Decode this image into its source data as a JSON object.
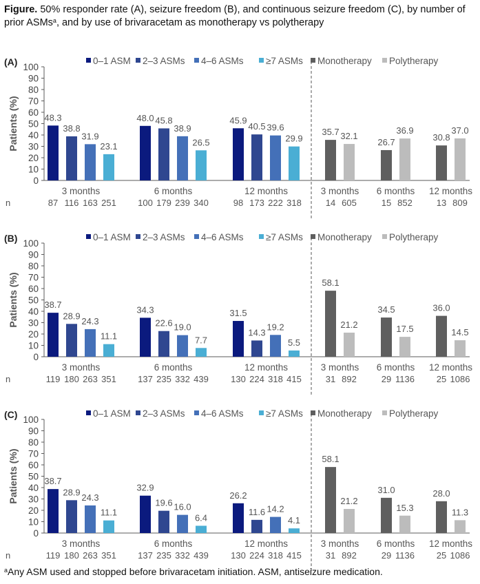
{
  "caption": {
    "bold": "Figure.",
    "text_before_sup": " 50% responder rate (A), seizure freedom (B), and continuous seizure freedom (C), by number of prior ASMs",
    "sup": "a",
    "text_after_sup": ", and by use of brivaracetam as monotherapy vs polytherapy"
  },
  "footnote": {
    "sup": "a",
    "text": "Any ASM used and stopped before brivaracetam initiation. ASM, antiseizure medication."
  },
  "colors": {
    "asm_0_1": "#0b1a7e",
    "asm_2_3": "#2f4790",
    "asm_4_6": "#4470b8",
    "asm_7plus": "#4aaed4",
    "monotherapy": "#5f5f5f",
    "polytherapy": "#bcbcbc"
  },
  "chart_data": [
    {
      "panel": "(A)",
      "type": "bar",
      "title": "50% responder rate",
      "ylabel": "Patients (%)",
      "ylim": [
        0,
        100
      ],
      "yticks": [
        0,
        10,
        20,
        30,
        40,
        50,
        60,
        70,
        80,
        90,
        100
      ],
      "legend": [
        "0–1 ASM",
        "2–3 ASMs",
        "4–6 ASMs",
        "≥7 ASMs",
        "Monotherapy",
        "Polytherapy"
      ],
      "legend_position": "top",
      "n_label": "n",
      "groups": [
        {
          "category": "3 months",
          "section": "prior_asms",
          "series": [
            "0–1 ASM",
            "2–3 ASMs",
            "4–6 ASMs",
            "≥7 ASMs"
          ],
          "values": [
            48.3,
            38.8,
            31.9,
            23.1
          ],
          "labels": [
            "48.3",
            "38.8",
            "31.9",
            "23.1"
          ],
          "n": [
            "87",
            "116",
            "163",
            "251"
          ]
        },
        {
          "category": "6 months",
          "section": "prior_asms",
          "series": [
            "0–1 ASM",
            "2–3 ASMs",
            "4–6 ASMs",
            "≥7 ASMs"
          ],
          "values": [
            48.0,
            45.8,
            38.9,
            26.5
          ],
          "labels": [
            "48.0",
            "45.8",
            "38.9",
            "26.5"
          ],
          "n": [
            "100",
            "179",
            "239",
            "340"
          ]
        },
        {
          "category": "12 months",
          "section": "prior_asms",
          "series": [
            "0–1 ASM",
            "2–3 ASMs",
            "4–6 ASMs",
            "≥7 ASMs"
          ],
          "values": [
            45.9,
            40.5,
            39.6,
            29.9
          ],
          "labels": [
            "45.9",
            "40.5",
            "39.6",
            "29.9"
          ],
          "n": [
            "98",
            "173",
            "222",
            "318"
          ]
        },
        {
          "category": "3 months",
          "section": "therapy",
          "series": [
            "Monotherapy",
            "Polytherapy"
          ],
          "values": [
            35.7,
            32.1
          ],
          "labels": [
            "35.7",
            "32.1"
          ],
          "n": [
            "14",
            "605"
          ]
        },
        {
          "category": "6 months",
          "section": "therapy",
          "series": [
            "Monotherapy",
            "Polytherapy"
          ],
          "values": [
            26.7,
            36.9
          ],
          "labels": [
            "26.7",
            "36.9"
          ],
          "n": [
            "15",
            "852"
          ]
        },
        {
          "category": "12 months",
          "section": "therapy",
          "series": [
            "Monotherapy",
            "Polytherapy"
          ],
          "values": [
            30.8,
            37.0
          ],
          "labels": [
            "30.8",
            "37.0"
          ],
          "n": [
            "13",
            "809"
          ]
        }
      ]
    },
    {
      "panel": "(B)",
      "type": "bar",
      "title": "Seizure freedom",
      "ylabel": "Patients (%)",
      "ylim": [
        0,
        100
      ],
      "yticks": [
        0,
        10,
        20,
        30,
        40,
        50,
        60,
        70,
        80,
        90,
        100
      ],
      "legend": [
        "0–1 ASM",
        "2–3 ASMs",
        "4–6 ASMs",
        "≥7 ASMs",
        "Monotherapy",
        "Polytherapy"
      ],
      "legend_position": "top",
      "n_label": "n",
      "groups": [
        {
          "category": "3 months",
          "section": "prior_asms",
          "series": [
            "0–1 ASM",
            "2–3 ASMs",
            "4–6 ASMs",
            "≥7 ASMs"
          ],
          "values": [
            38.7,
            28.9,
            24.3,
            11.1
          ],
          "labels": [
            "38.7",
            "28.9",
            "24.3",
            "11.1"
          ],
          "n": [
            "119",
            "180",
            "263",
            "351"
          ]
        },
        {
          "category": "6 months",
          "section": "prior_asms",
          "series": [
            "0–1 ASM",
            "2–3 ASMs",
            "4–6 ASMs",
            "≥7 ASMs"
          ],
          "values": [
            34.3,
            22.6,
            19.0,
            7.7
          ],
          "labels": [
            "34.3",
            "22.6",
            "19.0",
            "7.7"
          ],
          "n": [
            "137",
            "235",
            "332",
            "439"
          ]
        },
        {
          "category": "12 months",
          "section": "prior_asms",
          "series": [
            "0–1 ASM",
            "2–3 ASMs",
            "4–6 ASMs",
            "≥7 ASMs"
          ],
          "values": [
            31.5,
            14.3,
            19.2,
            5.5
          ],
          "labels": [
            "31.5",
            "14.3",
            "19.2",
            "5.5"
          ],
          "n": [
            "130",
            "224",
            "318",
            "415"
          ]
        },
        {
          "category": "3 months",
          "section": "therapy",
          "series": [
            "Monotherapy",
            "Polytherapy"
          ],
          "values": [
            58.1,
            21.2
          ],
          "labels": [
            "58.1",
            "21.2"
          ],
          "n": [
            "31",
            "892"
          ]
        },
        {
          "category": "6 months",
          "section": "therapy",
          "series": [
            "Monotherapy",
            "Polytherapy"
          ],
          "values": [
            34.5,
            17.5
          ],
          "labels": [
            "34.5",
            "17.5"
          ],
          "n": [
            "29",
            "1136"
          ]
        },
        {
          "category": "12 months",
          "section": "therapy",
          "series": [
            "Monotherapy",
            "Polytherapy"
          ],
          "values": [
            36.0,
            14.5
          ],
          "labels": [
            "36.0",
            "14.5"
          ],
          "n": [
            "25",
            "1086"
          ]
        }
      ]
    },
    {
      "panel": "(C)",
      "type": "bar",
      "title": "Continuous seizure freedom",
      "ylabel": "Patients (%)",
      "ylim": [
        0,
        100
      ],
      "yticks": [
        0,
        10,
        20,
        30,
        40,
        50,
        60,
        70,
        80,
        90,
        100
      ],
      "legend": [
        "0–1 ASM",
        "2–3 ASMs",
        "4–6 ASMs",
        "≥7 ASMs",
        "Monotherapy",
        "Polytherapy"
      ],
      "legend_position": "top",
      "n_label": "n",
      "groups": [
        {
          "category": "3 months",
          "section": "prior_asms",
          "series": [
            "0–1 ASM",
            "2–3 ASMs",
            "4–6 ASMs",
            "≥7 ASMs"
          ],
          "values": [
            38.7,
            28.9,
            24.3,
            11.1
          ],
          "labels": [
            "38.7",
            "28.9",
            "24.3",
            "11.1"
          ],
          "n": [
            "119",
            "180",
            "263",
            "351"
          ]
        },
        {
          "category": "6 months",
          "section": "prior_asms",
          "series": [
            "0–1 ASM",
            "2–3 ASMs",
            "4–6 ASMs",
            "≥7 ASMs"
          ],
          "values": [
            32.9,
            19.6,
            16.0,
            6.4
          ],
          "labels": [
            "32.9",
            "19.6",
            "16.0",
            "6.4"
          ],
          "n": [
            "137",
            "235",
            "332",
            "439"
          ]
        },
        {
          "category": "12 months",
          "section": "prior_asms",
          "series": [
            "0–1 ASM",
            "2–3 ASMs",
            "4–6 ASMs",
            "≥7 ASMs"
          ],
          "values": [
            26.2,
            11.6,
            14.2,
            4.1
          ],
          "labels": [
            "26.2",
            "11.6",
            "14.2",
            "4.1"
          ],
          "n": [
            "130",
            "224",
            "318",
            "415"
          ]
        },
        {
          "category": "3 months",
          "section": "therapy",
          "series": [
            "Monotherapy",
            "Polytherapy"
          ],
          "values": [
            58.1,
            21.2
          ],
          "labels": [
            "58.1",
            "21.2"
          ],
          "n": [
            "31",
            "892"
          ]
        },
        {
          "category": "6 months",
          "section": "therapy",
          "series": [
            "Monotherapy",
            "Polytherapy"
          ],
          "values": [
            31.0,
            15.3
          ],
          "labels": [
            "31.0",
            "15.3"
          ],
          "n": [
            "29",
            "1136"
          ]
        },
        {
          "category": "12 months",
          "section": "therapy",
          "series": [
            "Monotherapy",
            "Polytherapy"
          ],
          "values": [
            28.0,
            11.3
          ],
          "labels": [
            "28.0",
            "11.3"
          ],
          "n": [
            "25",
            "1086"
          ]
        }
      ]
    }
  ]
}
